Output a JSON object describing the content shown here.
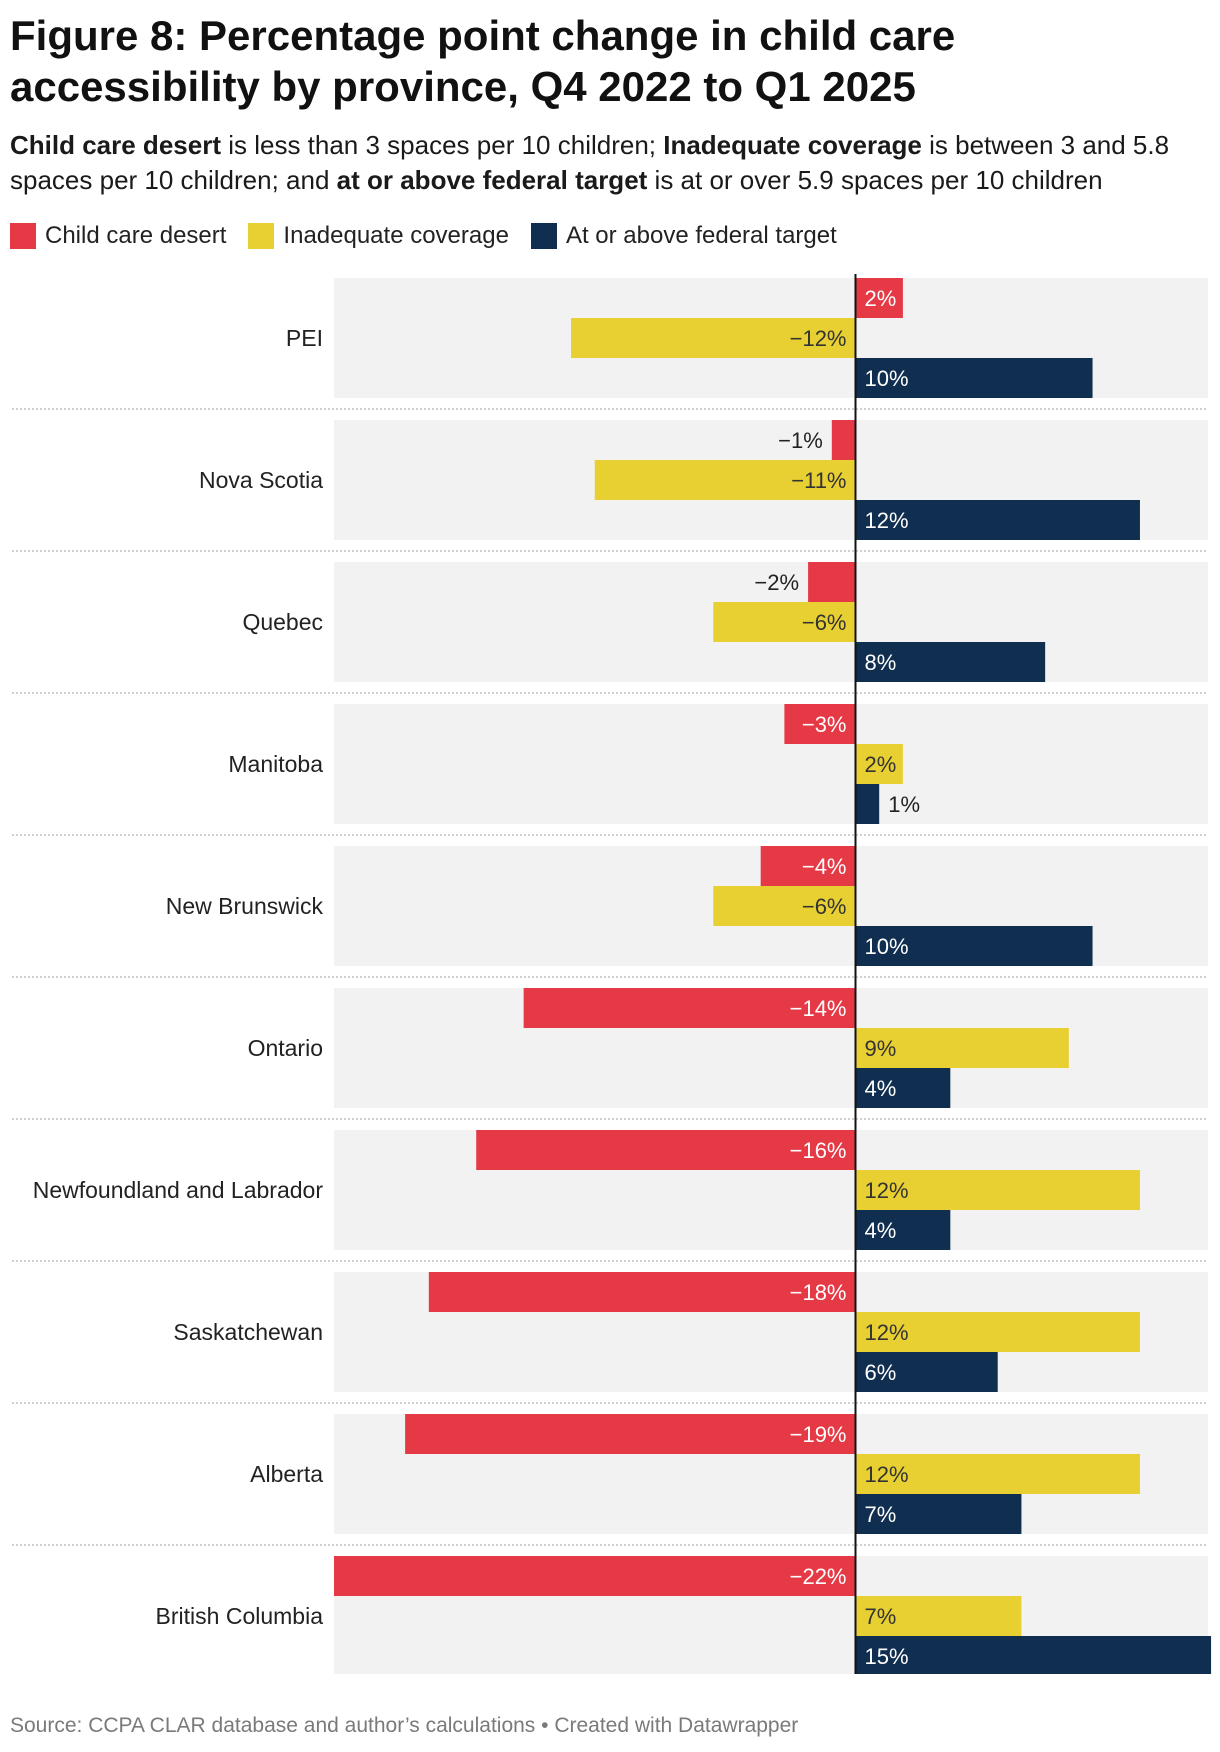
{
  "title": "Figure 8: Percentage point change in child care accessibility by province, Q4 2022 to Q1 2025",
  "subtitle": {
    "desert_term": "Child care desert",
    "desert_text": " is less than 3 spaces per 10 children; ",
    "inadequate_term": "Inadequate coverage",
    "inadequate_text": " is between 3 and 5.8 spaces per 10 children; and ",
    "target_term": "at or above federal target",
    "target_text": " is at or over 5.9 spaces per 10 children"
  },
  "legend": [
    {
      "label": "Child care desert",
      "color": "#e63946"
    },
    {
      "label": "Inadequate coverage",
      "color": "#e8d032"
    },
    {
      "label": "At or above federal target",
      "color": "#0f2e50"
    }
  ],
  "source": "Source: CCPA CLAR database and author’s calculations • Created with Datawrapper",
  "chart_data": {
    "type": "bar",
    "orientation": "horizontal",
    "title": "Figure 8: Percentage point change in child care accessibility by province, Q4 2022 to Q1 2025",
    "categories": [
      "PEI",
      "Nova Scotia",
      "Quebec",
      "Manitoba",
      "New Brunswick",
      "Ontario",
      "Newfoundland and Labrador",
      "Saskatchewan",
      "Alberta",
      "British Columbia"
    ],
    "series": [
      {
        "name": "Child care desert",
        "color": "#e63946",
        "values": [
          2,
          -1,
          -2,
          -3,
          -4,
          -14,
          -16,
          -18,
          -19,
          -22
        ],
        "labels": [
          "2%",
          "−1%",
          "−2%",
          "−3%",
          "−4%",
          "−14%",
          "−16%",
          "−18%",
          "−19%",
          "−22%"
        ]
      },
      {
        "name": "Inadequate coverage",
        "color": "#e8d032",
        "values": [
          -12,
          -11,
          -6,
          2,
          -6,
          9,
          12,
          12,
          12,
          7
        ],
        "labels": [
          "−12%",
          "−11%",
          "−6%",
          "2%",
          "−6%",
          "9%",
          "12%",
          "12%",
          "12%",
          "7%"
        ]
      },
      {
        "name": "At or above federal target",
        "color": "#0f2e50",
        "values": [
          10,
          12,
          8,
          1,
          10,
          4,
          4,
          6,
          7,
          15
        ],
        "labels": [
          "10%",
          "12%",
          "8%",
          "1%",
          "10%",
          "4%",
          "4%",
          "6%",
          "7%",
          "15%"
        ]
      }
    ],
    "xlim": [
      -22,
      15
    ],
    "xlabel": "",
    "ylabel": "",
    "legend": "top-left"
  }
}
